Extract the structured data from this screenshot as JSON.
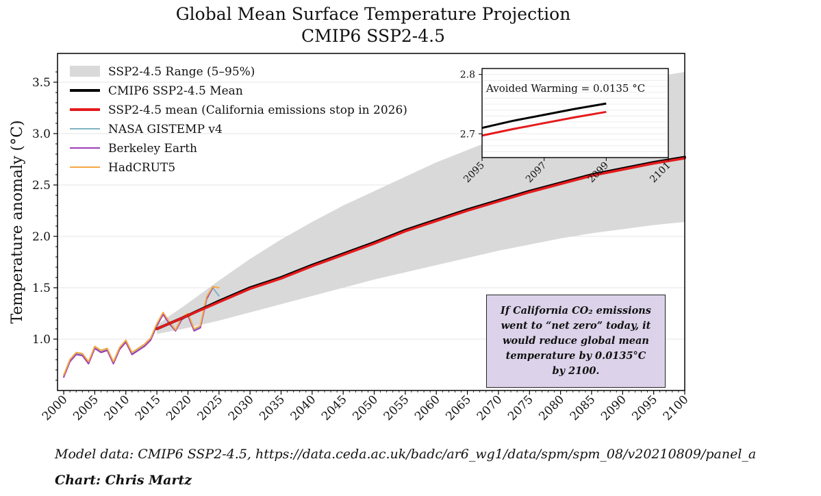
{
  "title_line1": "Global Mean Surface Temperature Projection",
  "title_line2": "CMIP6 SSP2-4.5",
  "caption_source": "Model data: CMIP6 SSP2-4.5, https://data.ceda.ac.uk/badc/ar6_wg1/data/spm/spm_08/v20210809/panel_a",
  "caption_credit": "Chart: Chris Martz",
  "annotation_lines": [
    "If California CO₂ emissions",
    "went to “net zero” today, it",
    "would reduce global mean",
    "temperature by 0.0135°C",
    "by 2100."
  ],
  "colors": {
    "range_fill": "#d9d9d9",
    "cmip6_mean": "#000000",
    "california_mean": "#e41a1c",
    "gistemp": "#7fb3c0",
    "berkeley": "#9b3fb5",
    "hadcrut": "#f5a742",
    "annotation_bg": "#dcd3ea"
  },
  "chart_data": [
    {
      "type": "line",
      "title": "Global Mean Surface Temperature Projection CMIP6 SSP2-4.5",
      "xlabel": "",
      "ylabel": "Temperature anomaly (°C)",
      "xlim": [
        1999,
        2100
      ],
      "ylim": [
        0.5,
        3.78
      ],
      "xticks": [
        2000,
        2005,
        2010,
        2015,
        2020,
        2025,
        2030,
        2035,
        2040,
        2045,
        2050,
        2055,
        2060,
        2065,
        2070,
        2075,
        2080,
        2085,
        2090,
        2095,
        2100
      ],
      "yticks": [
        1.0,
        1.5,
        2.0,
        2.5,
        3.0,
        3.5
      ],
      "ytick_labels": [
        "1.0",
        "1.5",
        "2.0",
        "2.5",
        "3.0",
        "3.5"
      ],
      "grid": true,
      "legend_position": "top-left",
      "legend": [
        "SSP2-4.5 Range (5–95%)",
        "CMIP6 SSP2-4.5 Mean",
        "SSP2-4.5 mean (California emissions stop in 2026)",
        "NASA GISTEMP v4",
        "Berkeley Earth",
        "HadCRUT5"
      ],
      "range_band": {
        "name": "SSP2-4.5 Range (5–95%)",
        "x": [
          2015,
          2020,
          2025,
          2030,
          2035,
          2040,
          2045,
          2050,
          2055,
          2060,
          2065,
          2070,
          2075,
          2080,
          2085,
          2090,
          2095,
          2100
        ],
        "low": [
          1.05,
          1.11,
          1.18,
          1.26,
          1.34,
          1.42,
          1.5,
          1.58,
          1.65,
          1.72,
          1.79,
          1.86,
          1.92,
          1.98,
          2.03,
          2.07,
          2.11,
          2.14
        ],
        "high": [
          1.14,
          1.35,
          1.57,
          1.78,
          1.97,
          2.14,
          2.3,
          2.44,
          2.58,
          2.72,
          2.84,
          2.96,
          3.06,
          3.15,
          3.27,
          3.39,
          3.55,
          3.6
        ]
      },
      "series": [
        {
          "name": "CMIP6 SSP2-4.5 Mean",
          "x": [
            2015,
            2020,
            2025,
            2030,
            2035,
            2040,
            2045,
            2050,
            2055,
            2060,
            2065,
            2070,
            2075,
            2080,
            2085,
            2090,
            2095,
            2100
          ],
          "values": [
            1.1,
            1.23,
            1.37,
            1.5,
            1.6,
            1.72,
            1.83,
            1.94,
            2.06,
            2.16,
            2.26,
            2.35,
            2.44,
            2.52,
            2.6,
            2.66,
            2.72,
            2.77
          ]
        },
        {
          "name": "SSP2-4.5 mean (California emissions stop in 2026)",
          "x": [
            2015,
            2020,
            2025,
            2030,
            2035,
            2040,
            2045,
            2050,
            2055,
            2060,
            2065,
            2070,
            2075,
            2080,
            2085,
            2090,
            2095,
            2100
          ],
          "values": [
            1.1,
            1.23,
            1.36,
            1.49,
            1.59,
            1.71,
            1.82,
            1.93,
            2.05,
            2.15,
            2.25,
            2.34,
            2.43,
            2.51,
            2.59,
            2.65,
            2.71,
            2.76
          ]
        },
        {
          "name": "NASA GISTEMP v4",
          "x": [
            2000,
            2001,
            2002,
            2003,
            2004,
            2005,
            2006,
            2007,
            2008,
            2009,
            2010,
            2011,
            2012,
            2013,
            2014,
            2015,
            2016,
            2017,
            2018,
            2019,
            2020,
            2021,
            2022,
            2023,
            2024,
            2025
          ],
          "values": [
            0.64,
            0.79,
            0.86,
            0.85,
            0.77,
            0.92,
            0.88,
            0.9,
            0.77,
            0.91,
            0.98,
            0.86,
            0.9,
            0.94,
            1.0,
            1.14,
            1.25,
            1.16,
            1.08,
            1.2,
            1.24,
            1.09,
            1.12,
            1.4,
            1.5,
            1.42
          ]
        },
        {
          "name": "Berkeley Earth",
          "x": [
            2000,
            2001,
            2002,
            2003,
            2004,
            2005,
            2006,
            2007,
            2008,
            2009,
            2010,
            2011,
            2012,
            2013,
            2014,
            2015,
            2016,
            2017,
            2018,
            2019,
            2020,
            2021,
            2022,
            2023,
            2024
          ],
          "values": [
            0.63,
            0.78,
            0.85,
            0.84,
            0.76,
            0.91,
            0.87,
            0.89,
            0.76,
            0.9,
            0.97,
            0.85,
            0.89,
            0.93,
            0.99,
            1.13,
            1.24,
            1.15,
            1.08,
            1.19,
            1.23,
            1.08,
            1.11,
            1.39,
            1.5
          ]
        },
        {
          "name": "HadCRUT5",
          "x": [
            2000,
            2001,
            2002,
            2003,
            2004,
            2005,
            2006,
            2007,
            2008,
            2009,
            2010,
            2011,
            2012,
            2013,
            2014,
            2015,
            2016,
            2017,
            2018,
            2019,
            2020,
            2021,
            2022,
            2023,
            2024,
            2025
          ],
          "values": [
            0.65,
            0.8,
            0.87,
            0.86,
            0.78,
            0.93,
            0.89,
            0.91,
            0.78,
            0.92,
            0.99,
            0.87,
            0.91,
            0.95,
            1.01,
            1.15,
            1.26,
            1.17,
            1.09,
            1.21,
            1.25,
            1.1,
            1.13,
            1.41,
            1.51,
            1.5
          ]
        }
      ]
    },
    {
      "type": "line",
      "title": "",
      "annotation": "Avoided Warming = 0.0135 °C",
      "xlim": [
        2095,
        2101
      ],
      "ylim": [
        2.66,
        2.81
      ],
      "xticks": [
        2095,
        2097,
        2099,
        2101
      ],
      "yticks": [
        2.7,
        2.8
      ],
      "ytick_labels": [
        "2.7",
        "2.8"
      ],
      "grid": true,
      "series": [
        {
          "name": "CMIP6 SSP2-4.5 Mean",
          "x": [
            2095,
            2096,
            2097,
            2098,
            2099
          ],
          "values": [
            2.71,
            2.722,
            2.732,
            2.742,
            2.751
          ]
        },
        {
          "name": "SSP2-4.5 mean (California emissions stop in 2026)",
          "x": [
            2095,
            2096,
            2097,
            2098,
            2099
          ],
          "values": [
            2.697,
            2.708,
            2.718,
            2.728,
            2.737
          ]
        }
      ]
    }
  ]
}
